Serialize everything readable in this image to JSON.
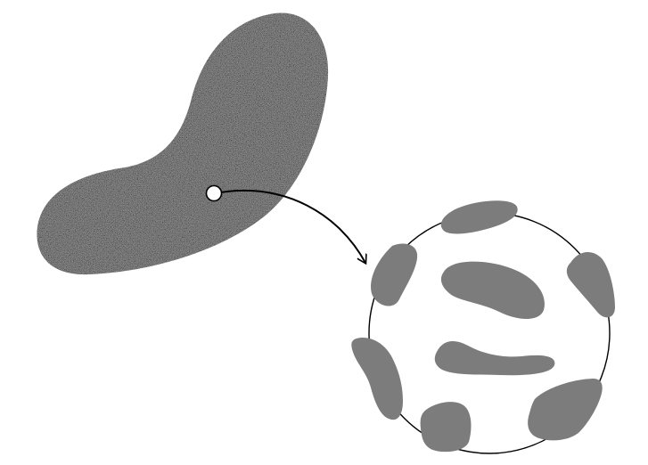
{
  "colors": {
    "background": "#ffffff",
    "region_fill": "#8a8a8a",
    "blob_fill": "#7c7c7c",
    "stroke": "#000000",
    "point_fill": "#ffffff"
  },
  "elements": {
    "region": "speckled-region",
    "point": "marked-point",
    "arrow": "curved-arrow",
    "sphere": "sphere-outline",
    "patches": "gray-patches"
  }
}
